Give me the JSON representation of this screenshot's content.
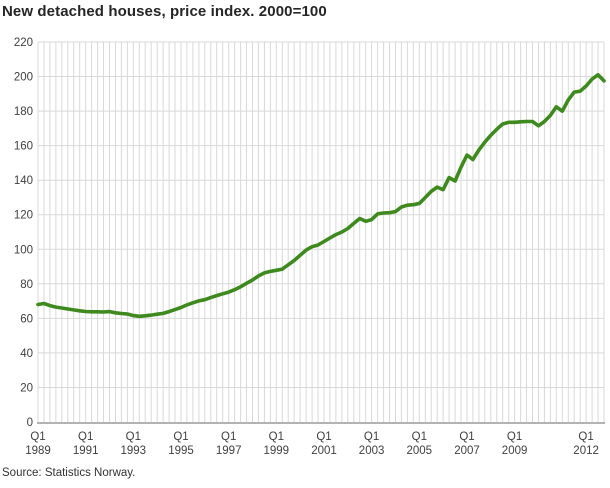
{
  "title": "New detached houses, price index. 2000=100",
  "source": "Source: Statistics Norway.",
  "colors": {
    "line": "#3e8a1e",
    "grid": "#d9d9d9",
    "axis_line": "#b3b3b3",
    "tick_text": "#404040",
    "title_text": "#262626",
    "background": "#ffffff"
  },
  "chart_data": {
    "type": "line",
    "title": "New detached houses, price index. 2000=100",
    "xlabel": "",
    "ylabel": "",
    "ylim": [
      0,
      220
    ],
    "y_ticks": [
      0,
      20,
      40,
      60,
      80,
      100,
      120,
      140,
      160,
      180,
      200,
      220
    ],
    "grid": "vertical line per quarter, horizontal line per 20 units",
    "legend_position": "none",
    "x_unit": "quarters from 1989 Q1 to 2012 Q4",
    "x_ticks": [
      {
        "q": "Q1",
        "year": "1989",
        "index": 0
      },
      {
        "q": "Q1",
        "year": "1991",
        "index": 8
      },
      {
        "q": "Q1",
        "year": "1993",
        "index": 16
      },
      {
        "q": "Q1",
        "year": "1995",
        "index": 24
      },
      {
        "q": "Q1",
        "year": "1997",
        "index": 32
      },
      {
        "q": "Q1",
        "year": "1999",
        "index": 40
      },
      {
        "q": "Q1",
        "year": "2001",
        "index": 48
      },
      {
        "q": "Q1",
        "year": "2003",
        "index": 56
      },
      {
        "q": "Q1",
        "year": "2005",
        "index": 64
      },
      {
        "q": "Q1",
        "year": "2007",
        "index": 72
      },
      {
        "q": "Q1",
        "year": "2009",
        "index": 80
      },
      {
        "q": "Q1",
        "year": "2012",
        "index": 92
      }
    ],
    "series": [
      {
        "name": "Price index, new detached houses (2000=100)",
        "values": [
          68,
          68.6,
          67.4,
          66.5,
          66,
          65.4,
          64.9,
          64.4,
          64,
          63.8,
          63.8,
          63.7,
          63.9,
          63.2,
          62.8,
          62.5,
          61.6,
          61.2,
          61.5,
          61.9,
          62.4,
          62.9,
          63.9,
          65.1,
          66.3,
          67.8,
          69,
          70.1,
          70.8,
          72,
          73.2,
          74.2,
          75.2,
          76.6,
          78.3,
          80.3,
          82.2,
          84.5,
          86.3,
          87.2,
          87.8,
          88.5,
          91,
          93.5,
          96.5,
          99.5,
          101.5,
          102.5,
          104.5,
          106.5,
          108.5,
          110,
          112,
          115,
          117.8,
          116.2,
          117.2,
          120.5,
          121,
          121.2,
          121.8,
          124.5,
          125.5,
          125.8,
          126.5,
          130,
          133.5,
          136,
          134.5,
          141.5,
          139.5,
          147.5,
          154.5,
          152,
          157.5,
          162,
          166,
          169.5,
          172.5,
          173.5,
          173.5,
          173.8,
          174,
          174,
          171.5,
          174,
          177.5,
          182.5,
          180,
          186.5,
          191,
          191.5,
          194.5,
          198.5,
          201,
          197.5
        ]
      }
    ]
  }
}
